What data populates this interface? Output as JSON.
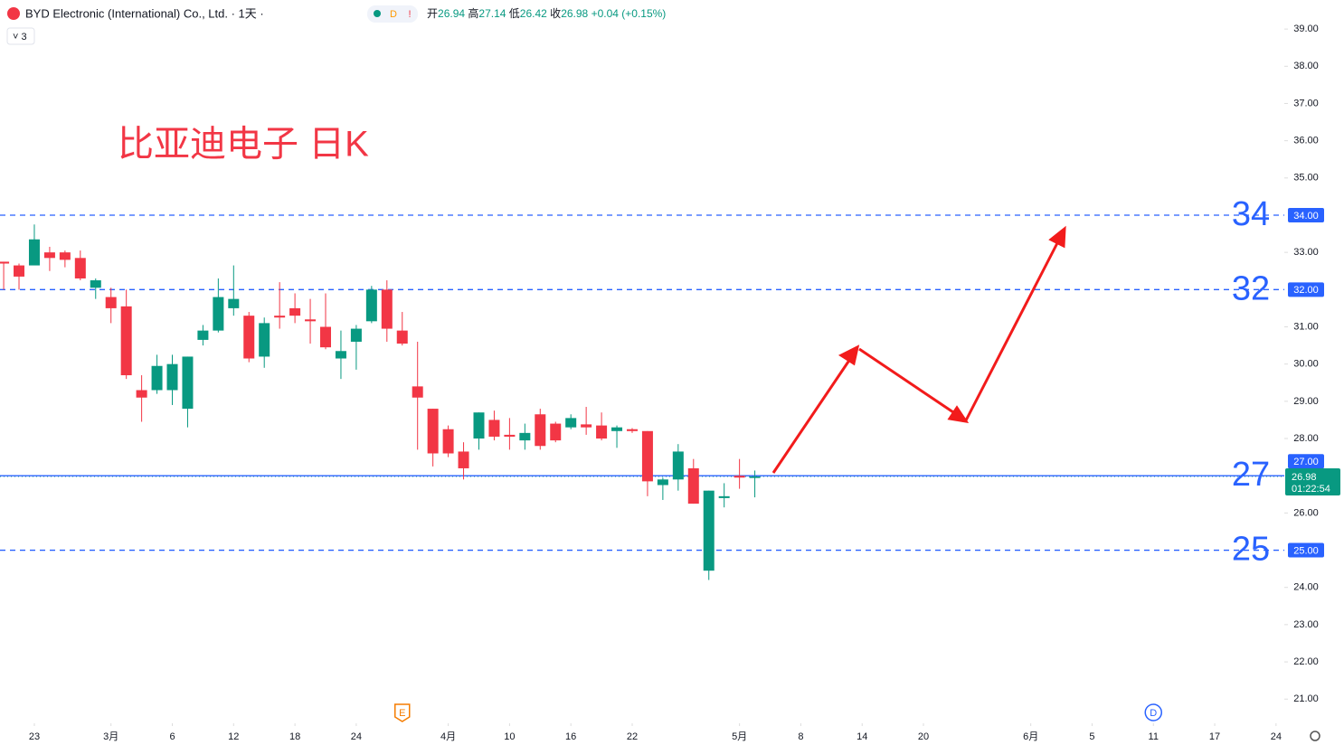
{
  "chart_data": {
    "type": "candlestick",
    "header": {
      "name": "BYD Electronic (International) Co., Ltd. · 1天 ·",
      "badge": "D",
      "alert": "!",
      "open_label": "开",
      "open": "26.94",
      "high_label": "高",
      "high": "27.14",
      "low_label": "低",
      "low": "26.42",
      "close_label": "收",
      "close": "26.98",
      "change": "+0.04 (+0.15%)",
      "count": "3"
    },
    "title": "比亚迪电子 日K",
    "up_color": "#089981",
    "down_color": "#f23645",
    "open": [
      32.75,
      32.65,
      32.65,
      33.0,
      33.0,
      32.85,
      32.05,
      31.8,
      31.55,
      29.3,
      29.3,
      29.3,
      28.8,
      30.65,
      30.9,
      31.5,
      31.3,
      30.2,
      31.3,
      31.5,
      31.2,
      31.0,
      30.15,
      30.6,
      31.15,
      32.0,
      30.9,
      29.4,
      28.8,
      28.25,
      27.65,
      28.0,
      28.5,
      28.1,
      27.95,
      28.65,
      28.4,
      28.3,
      28.38,
      28.35,
      28.2,
      28.25,
      28.2,
      26.75,
      26.9,
      27.2,
      24.45,
      26.4,
      27.0,
      26.94
    ],
    "high": [
      32.75,
      32.7,
      33.75,
      33.15,
      33.05,
      33.05,
      32.3,
      32.05,
      32.0,
      29.7,
      30.25,
      30.25,
      30.2,
      31.05,
      32.3,
      32.65,
      31.4,
      31.25,
      32.2,
      31.9,
      31.75,
      31.9,
      30.9,
      31.05,
      32.1,
      32.25,
      31.4,
      30.6,
      28.8,
      28.35,
      27.9,
      28.7,
      28.75,
      28.55,
      28.4,
      28.8,
      28.45,
      28.65,
      28.85,
      28.7,
      28.35,
      28.28,
      28.2,
      26.95,
      27.85,
      27.45,
      26.6,
      26.8,
      27.45,
      27.14
    ],
    "low": [
      32.0,
      32.0,
      32.7,
      32.5,
      32.6,
      32.25,
      31.75,
      31.1,
      29.6,
      28.45,
      29.2,
      28.9,
      28.3,
      30.5,
      30.85,
      31.3,
      30.05,
      29.9,
      30.95,
      31.1,
      30.55,
      30.4,
      29.6,
      29.85,
      31.1,
      30.6,
      30.5,
      27.7,
      27.25,
      27.5,
      26.9,
      27.7,
      27.95,
      27.7,
      27.7,
      27.7,
      27.9,
      28.25,
      28.1,
      27.95,
      27.75,
      28.15,
      26.45,
      26.35,
      26.6,
      26.25,
      24.2,
      26.15,
      26.65,
      26.42
    ],
    "close": [
      32.7,
      32.35,
      33.35,
      32.85,
      32.8,
      32.3,
      32.25,
      31.5,
      29.7,
      29.1,
      29.95,
      30.0,
      30.2,
      30.9,
      31.8,
      31.75,
      30.15,
      31.1,
      31.25,
      31.3,
      31.15,
      30.45,
      30.35,
      30.95,
      32.0,
      30.95,
      30.55,
      29.1,
      27.6,
      27.6,
      27.2,
      28.7,
      28.05,
      28.05,
      28.15,
      27.8,
      27.95,
      28.55,
      28.3,
      28.0,
      28.3,
      28.2,
      26.85,
      26.9,
      27.65,
      26.25,
      26.6,
      26.45,
      26.95,
      26.98
    ],
    "xlim": [
      -0.24,
      83.54
    ],
    "xticks": [
      {
        "value": 2,
        "label": "23"
      },
      {
        "value": 7,
        "label": "3月"
      },
      {
        "value": 11,
        "label": "6"
      },
      {
        "value": 15,
        "label": "12"
      },
      {
        "value": 19,
        "label": "18"
      },
      {
        "value": 23,
        "label": "24"
      },
      {
        "value": 29,
        "label": "4月"
      },
      {
        "value": 33,
        "label": "10"
      },
      {
        "value": 37,
        "label": "16"
      },
      {
        "value": 41,
        "label": "22"
      },
      {
        "value": 48,
        "label": "5月"
      },
      {
        "value": 52,
        "label": "8"
      },
      {
        "value": 56,
        "label": "14"
      },
      {
        "value": 60,
        "label": "20"
      },
      {
        "value": 67,
        "label": "6月"
      },
      {
        "value": 71,
        "label": "5"
      },
      {
        "value": 75,
        "label": "11"
      },
      {
        "value": 79,
        "label": "17"
      },
      {
        "value": 83,
        "label": "24"
      }
    ],
    "ylim": [
      20.35,
      39.78
    ],
    "yticks": [
      {
        "value": 21,
        "label": "21.00"
      },
      {
        "value": 22,
        "label": "22.00"
      },
      {
        "value": 23,
        "label": "23.00"
      },
      {
        "value": 24,
        "label": "24.00"
      },
      {
        "value": 26,
        "label": "26.00"
      },
      {
        "value": 28,
        "label": "28.00"
      },
      {
        "value": 29,
        "label": "29.00"
      },
      {
        "value": 30,
        "label": "30.00"
      },
      {
        "value": 31,
        "label": "31.00"
      },
      {
        "value": 33,
        "label": "33.00"
      },
      {
        "value": 35,
        "label": "35.00"
      },
      {
        "value": 36,
        "label": "36.00"
      },
      {
        "value": 37,
        "label": "37.00"
      },
      {
        "value": 38,
        "label": "38.00"
      },
      {
        "value": 39,
        "label": "39.00"
      }
    ],
    "levels": [
      {
        "value": 34,
        "label": "34",
        "price_label": "34.00",
        "style": "dashed"
      },
      {
        "value": 32,
        "label": "32",
        "price_label": "32.00",
        "style": "dashed"
      },
      {
        "value": 27,
        "label": "27",
        "price_label": "27.00",
        "style": "solid"
      },
      {
        "value": 25,
        "label": "25",
        "price_label": "25.00",
        "style": "dashed"
      }
    ],
    "level_color": "#2962ff",
    "last_price": {
      "value": 26.98,
      "label": "26.98",
      "countdown": "01:22:54"
    },
    "events": [
      {
        "label": "E",
        "x": 26,
        "color": "#f57c00"
      },
      {
        "label": "D",
        "x": 75,
        "color": "#2962ff"
      }
    ]
  }
}
